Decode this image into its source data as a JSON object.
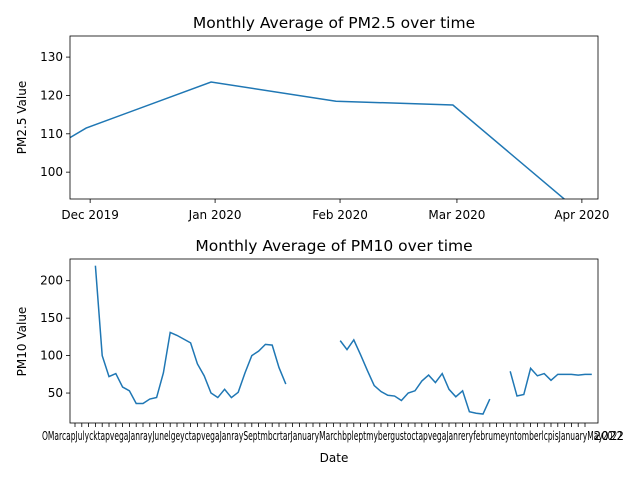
{
  "chart_data": [
    {
      "type": "line",
      "title": "Monthly Average of PM2.5 over time",
      "xlabel": "",
      "ylabel": "PM2.5 Value",
      "ylim": [
        93,
        135.5
      ],
      "xlim": [
        "2019-11-26",
        "2020-04-05"
      ],
      "grid": false,
      "color": "#1f77b4",
      "yticks": [
        100,
        110,
        120,
        130
      ],
      "xticks": [
        {
          "date": "2019-12-01",
          "label": "Dec 2019"
        },
        {
          "date": "2020-01-01",
          "label": "Jan 2020"
        },
        {
          "date": "2020-02-01",
          "label": "Feb 2020"
        },
        {
          "date": "2020-03-01",
          "label": "Mar 2020"
        },
        {
          "date": "2020-04-01",
          "label": "Apr 2020"
        }
      ],
      "series": [
        {
          "x": [
            "2019-11-26",
            "2019-11-30",
            "2019-12-31",
            "2020-01-31",
            "2020-02-29",
            "2020-03-31"
          ],
          "y": [
            109.0,
            111.5,
            123.5,
            118.5,
            117.5,
            90.0
          ]
        }
      ]
    },
    {
      "type": "line",
      "title": "Monthly Average of PM10 over time",
      "xlabel": "Date",
      "ylabel": "PM10 Value",
      "ylim": [
        10,
        229
      ],
      "grid": false,
      "color": "#1f77b4",
      "yticks": [
        50,
        100,
        150,
        200
      ],
      "xtick_count": 76,
      "xtick_first_label": "Oct",
      "xtick_last_label": "2022",
      "series": [
        {
          "y": [
            220,
            100,
            72,
            76,
            58,
            53,
            36,
            36,
            42,
            44,
            77,
            131,
            127,
            122,
            117,
            89,
            73,
            50,
            44,
            55,
            44,
            51,
            77,
            100,
            106,
            115,
            114,
            84,
            62,
            null,
            null,
            null,
            null,
            null,
            null,
            null,
            120,
            108,
            121,
            101,
            80,
            60,
            52,
            47,
            46,
            40,
            50,
            53,
            66,
            74,
            64,
            76,
            55,
            45,
            53,
            25,
            23,
            22,
            42,
            null,
            null,
            79,
            46,
            48,
            83,
            73,
            76,
            67,
            75,
            75,
            75,
            74,
            75,
            75
          ]
        }
      ]
    }
  ]
}
